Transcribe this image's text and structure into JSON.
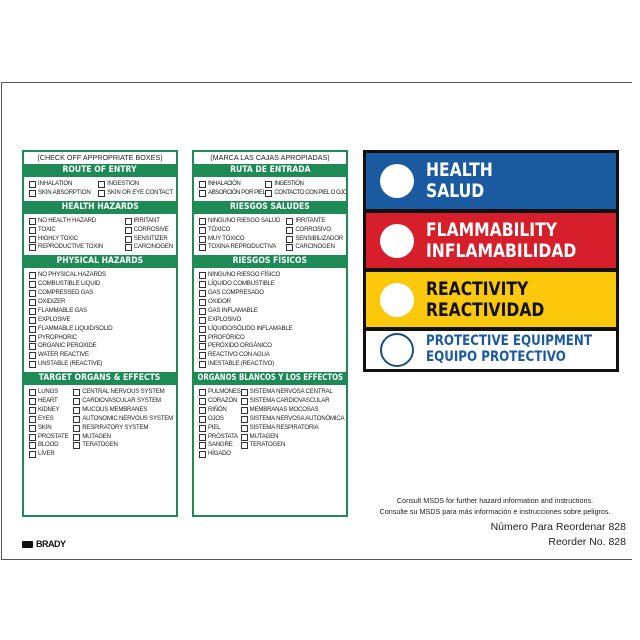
{
  "english_panel": {
    "title": "(CHECK OFF APPROPRIATE BOXES)",
    "sections": [
      {
        "heading": "ROUTE OF ENTRY",
        "columns": [
          [
            "INHALATION",
            "SKIN ABSORPTION"
          ],
          [
            "INGESTION",
            "SKIN OR EYE CONTACT"
          ]
        ]
      },
      {
        "heading": "HEALTH HAZARDS",
        "columns": [
          [
            "NO HEALTH HAZARD",
            "TOXIC",
            "HIGHLY TOXIC",
            "REPRODUCTIVE TOXIN"
          ],
          [
            "IRRITANT",
            "CORROSIVE",
            "SENSITIZER",
            "CARCINOGEN"
          ]
        ]
      },
      {
        "heading": "PHYSICAL HAZARDS",
        "columns": [
          [
            "NO PHYSICAL HAZARDS",
            "COMBUSTIBLE LIQUID",
            "COMPRESSED GAS",
            "OXIDIZER",
            "FLAMMABLE GAS",
            "EXPLOSIVE",
            "FLAMMABLE LIQUID/SOLID",
            "PYROPHORIC",
            "ORGANIC PEROXIDE",
            "WATER REACTIVE",
            "UNSTABLE (REACTIVE)"
          ]
        ]
      },
      {
        "heading": "TARGET ORGANS & EFFECTS",
        "columns": [
          [
            "LUNGS",
            "HEART",
            "KIDNEY",
            "EYES",
            "SKIN",
            "PROSTATE",
            "BLOOD",
            "LIVER"
          ],
          [
            "CENTRAL NERVOUS SYSTEM",
            "CARDIOVASCULAR SYSTEM",
            "MUCOUS MEMBRANES",
            "AUTONOMIC NERVOUS SYSTEM",
            "RESPIRATORY SYSTEM",
            "MUTAGEN",
            "TERATOGEN"
          ]
        ]
      }
    ]
  },
  "spanish_panel": {
    "title": "(MARCA LAS CAJAS APROPIADAS)",
    "sections": [
      {
        "heading": "RUTA DE ENTRADA",
        "columns": [
          [
            "INHALACIÓN",
            "ABSORCIÓN POR PIEL"
          ],
          [
            "INGESTIÓN",
            "CONTACTO CON PIEL O OJO"
          ]
        ]
      },
      {
        "heading": "RIESGOS SALUDES",
        "columns": [
          [
            "NINGUNO RIESGO SALUD",
            "TÓXICO",
            "MUY TÓXICO",
            "TOXINA REPRODUCTIVA"
          ],
          [
            "IRRITANTE",
            "CORROSIVO",
            "SENSIBILIZADOR",
            "CARCINOGEN"
          ]
        ]
      },
      {
        "heading": "RIESGOS FÍSICOS",
        "columns": [
          [
            "NINGUNO RIESGO FÍSICO",
            "LÍQUIDO COMBUSTIBLE",
            "GAS COMPRESADO",
            "OXIDOR",
            "GAS INFLAMABLE",
            "EXPLOSIVO",
            "LÍQUIDO/SÓLIDO INFLAMABLE",
            "PIROFÓRICO",
            "PERÓXIDO ORGÁNICO",
            "REACTIVO CON AGUA",
            "INESTABLE (REACTIVO)"
          ]
        ]
      },
      {
        "heading": "ORGANOS BLANCOS Y LOS EFFECTOS",
        "columns": [
          [
            "PULMONES",
            "CORAZÓN",
            "RIÑÓN",
            "OJOS",
            "PIEL",
            "PRÓSTATA",
            "SANGRE",
            "HÍGADO"
          ],
          [
            "SISTEMA NERVOSA CENTRAL",
            "SISTEMA CARDIOVASCULAR",
            "MEMBRANAS MOCOSAS",
            "SISTEMA NERVOSA AUTONÓMICA",
            "SISTEMA RESPIRATORIA",
            "MUTAGEN",
            "TERATOGEN"
          ]
        ]
      }
    ]
  },
  "hazard_bands": {
    "health": {
      "line1": "HEALTH",
      "line2": "SALUD",
      "color": "#1a5aa0"
    },
    "flammability": {
      "line1": "FLAMMABILITY",
      "line2": "INFLAMABILIDAD",
      "color": "#d71f2b"
    },
    "reactivity": {
      "line1": "REACTIVITY",
      "line2": "REACTIVIDAD",
      "color": "#fcc80c"
    },
    "protective": {
      "line1": "PROTECTIVE EQUIPMENT",
      "line2": "EQUIPO PROTECTIVO",
      "color": "#ffffff"
    }
  },
  "footer": {
    "consult_en": "Consult MSDS for further hazard information and instructions.",
    "consult_es": "Consulte su MSDS para más información e instrucciones sobre peligros.",
    "reorder_es": "Número Para Reordenar 828",
    "reorder_en": "Reorder No. 828",
    "brand": "BRADY"
  }
}
